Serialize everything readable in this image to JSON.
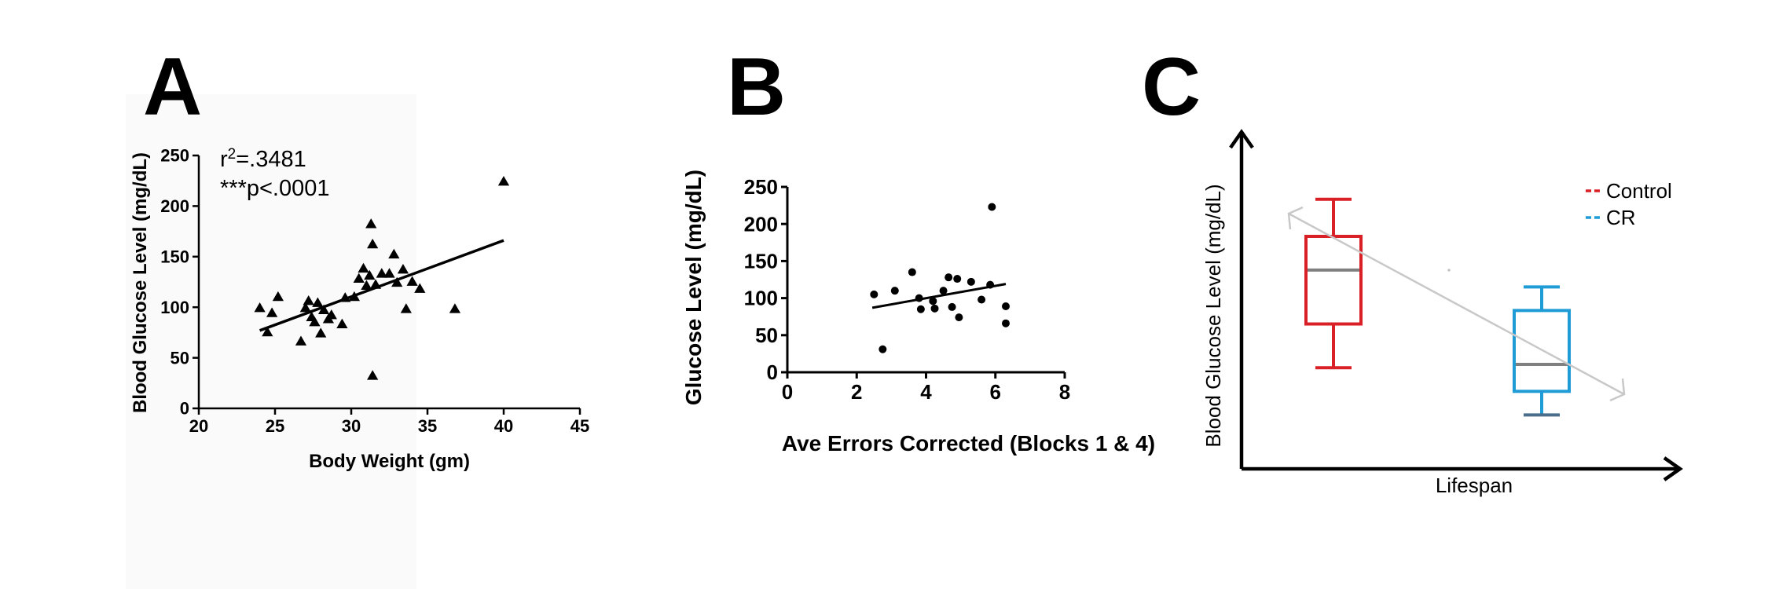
{
  "chart_data": [
    {
      "panel": "A",
      "type": "scatter",
      "xlabel": "Body Weight (gm)",
      "ylabel": "Blood Glucose Level (mg/dL)",
      "xlim": [
        20,
        45
      ],
      "ylim": [
        0,
        250
      ],
      "xticks": [
        20,
        25,
        30,
        35,
        40,
        45
      ],
      "yticks": [
        0,
        50,
        100,
        150,
        200,
        250
      ],
      "marker": "triangle",
      "annotation": {
        "r_sym": "r",
        "r_sup": "2",
        "r_val": "=.3481",
        "p": "***p<.0001"
      },
      "points": [
        [
          24,
          99
        ],
        [
          24.5,
          75
        ],
        [
          24.8,
          94
        ],
        [
          25.2,
          110
        ],
        [
          26.7,
          66
        ],
        [
          27,
          99
        ],
        [
          27.2,
          106
        ],
        [
          27.4,
          90
        ],
        [
          27.6,
          85
        ],
        [
          27.8,
          104
        ],
        [
          28,
          74
        ],
        [
          28.2,
          97
        ],
        [
          28.5,
          88
        ],
        [
          28.7,
          92
        ],
        [
          29.4,
          83
        ],
        [
          29.6,
          109
        ],
        [
          30.2,
          110
        ],
        [
          30.5,
          128
        ],
        [
          30.8,
          138
        ],
        [
          31,
          121
        ],
        [
          31.2,
          131
        ],
        [
          31.3,
          182
        ],
        [
          31.4,
          162
        ],
        [
          31.4,
          32
        ],
        [
          31.6,
          122
        ],
        [
          32,
          133
        ],
        [
          32.5,
          133
        ],
        [
          32.8,
          152
        ],
        [
          33,
          124
        ],
        [
          33.4,
          137
        ],
        [
          33.6,
          98
        ],
        [
          34,
          125
        ],
        [
          34.5,
          118
        ],
        [
          36.8,
          98
        ],
        [
          40,
          224
        ]
      ],
      "fit": [
        [
          24,
          77
        ],
        [
          40,
          166
        ]
      ]
    },
    {
      "panel": "B",
      "type": "scatter",
      "xlabel": "Ave Errors Corrected (Blocks 1 & 4)",
      "ylabel": "Glucose Level (mg/dL)",
      "xlim": [
        0,
        8
      ],
      "ylim": [
        0,
        250
      ],
      "xticks": [
        0,
        2,
        4,
        6,
        8
      ],
      "yticks": [
        0,
        50,
        100,
        150,
        200,
        250
      ],
      "marker": "circle",
      "points": [
        [
          2.5,
          105
        ],
        [
          2.75,
          31
        ],
        [
          3.1,
          110
        ],
        [
          3.6,
          135
        ],
        [
          3.8,
          100
        ],
        [
          3.85,
          85
        ],
        [
          4.2,
          96
        ],
        [
          4.25,
          86
        ],
        [
          4.5,
          110
        ],
        [
          4.65,
          128
        ],
        [
          4.75,
          88
        ],
        [
          4.9,
          126
        ],
        [
          4.95,
          74
        ],
        [
          5.3,
          122
        ],
        [
          5.6,
          98
        ],
        [
          5.85,
          118
        ],
        [
          5.9,
          223
        ],
        [
          6.3,
          89
        ],
        [
          6.3,
          66
        ]
      ],
      "fit": [
        [
          2.45,
          87
        ],
        [
          6.3,
          119
        ]
      ]
    },
    {
      "panel": "C",
      "type": "box",
      "xlabel": "Lifespan",
      "ylabel": "Blood Glucose Level (mg/dL)",
      "legend_position": "top-right",
      "series": [
        {
          "name": "Control",
          "color": "#d92027",
          "whisker_low": 0.3,
          "q1": 0.43,
          "median": 0.59,
          "q3": 0.69,
          "whisker_high": 0.8
        },
        {
          "name": "CR",
          "color": "#1f9bd6",
          "whisker_low": 0.16,
          "q1": 0.23,
          "median": 0.31,
          "q3": 0.47,
          "whisker_high": 0.54
        }
      ],
      "median_color": "#808080",
      "trend_color": "#c8c8c8"
    }
  ]
}
